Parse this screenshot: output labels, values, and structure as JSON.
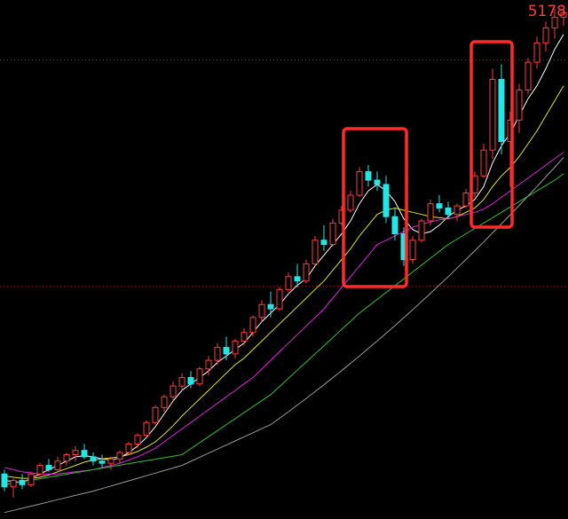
{
  "chart_data": {
    "type": "candlestick",
    "ylim": [
      2800,
      5220
    ],
    "up_color": "#ff3b3b",
    "down_color": "#22e5e5",
    "hlines": [
      4940,
      3885
    ],
    "max_label": {
      "value": 5178,
      "label": "5178"
    },
    "open": [
      3010,
      2950,
      2980,
      2960,
      3010,
      3050,
      3030,
      3070,
      3100,
      3120,
      3090,
      3070,
      3060,
      3080,
      3110,
      3150,
      3190,
      3250,
      3320,
      3370,
      3420,
      3460,
      3430,
      3500,
      3540,
      3600,
      3570,
      3630,
      3670,
      3740,
      3800,
      3780,
      3870,
      3930,
      3910,
      3990,
      4100,
      4080,
      4180,
      4240,
      4310,
      4420,
      4380,
      4360,
      4210,
      4130,
      4010,
      4100,
      4190,
      4270,
      4250,
      4220,
      4260,
      4320,
      4400,
      4520,
      4850,
      4560,
      4660,
      4800,
      4930,
      5020,
      5090,
      5140
    ],
    "high": [
      3030,
      2990,
      3010,
      3020,
      3060,
      3080,
      3090,
      3110,
      3140,
      3150,
      3110,
      3100,
      3090,
      3120,
      3160,
      3200,
      3260,
      3330,
      3380,
      3440,
      3480,
      3490,
      3510,
      3560,
      3620,
      3650,
      3640,
      3690,
      3750,
      3820,
      3860,
      3880,
      3950,
      3990,
      4010,
      4120,
      4170,
      4200,
      4260,
      4330,
      4440,
      4450,
      4420,
      4400,
      4250,
      4160,
      4120,
      4200,
      4290,
      4310,
      4280,
      4270,
      4340,
      4420,
      4550,
      4900,
      4920,
      4700,
      4830,
      4950,
      5050,
      5120,
      5178,
      5178
    ],
    "low": [
      2930,
      2900,
      2940,
      2950,
      2990,
      3020,
      3020,
      3050,
      3070,
      3080,
      3050,
      3040,
      3030,
      3060,
      3100,
      3130,
      3180,
      3240,
      3300,
      3350,
      3400,
      3410,
      3420,
      3470,
      3520,
      3540,
      3550,
      3610,
      3650,
      3720,
      3740,
      3770,
      3860,
      3880,
      3900,
      3980,
      4050,
      4070,
      4170,
      4230,
      4300,
      4350,
      4330,
      4180,
      4100,
      3980,
      3990,
      4090,
      4170,
      4230,
      4200,
      4190,
      4250,
      4300,
      4390,
      4480,
      4500,
      4350,
      4600,
      4780,
      4900,
      4980,
      5040,
      5100
    ],
    "close": [
      2950,
      2980,
      2960,
      3010,
      3050,
      3030,
      3070,
      3100,
      3120,
      3090,
      3070,
      3060,
      3080,
      3110,
      3150,
      3190,
      3250,
      3320,
      3370,
      3420,
      3460,
      3430,
      3500,
      3540,
      3600,
      3570,
      3630,
      3670,
      3740,
      3800,
      3780,
      3870,
      3930,
      3910,
      3990,
      4100,
      4080,
      4180,
      4240,
      4310,
      4420,
      4380,
      4360,
      4210,
      4130,
      4010,
      4100,
      4190,
      4270,
      4250,
      4220,
      4260,
      4320,
      4400,
      4520,
      4850,
      4560,
      4660,
      4800,
      4930,
      5020,
      5090,
      5140,
      5160
    ],
    "series": [
      {
        "color": "#ffffff",
        "values": [
          2980,
          2975,
          2970,
          2990,
          3010,
          3030,
          3050,
          3070,
          3090,
          3095,
          3090,
          3080,
          3075,
          3085,
          3110,
          3140,
          3180,
          3230,
          3290,
          3350,
          3400,
          3430,
          3460,
          3490,
          3530,
          3560,
          3590,
          3620,
          3670,
          3720,
          3760,
          3800,
          3850,
          3890,
          3920,
          3980,
          4030,
          4080,
          4130,
          4190,
          4270,
          4330,
          4360,
          4330,
          4280,
          4200,
          4150,
          4130,
          4140,
          4170,
          4210,
          4240,
          4260,
          4290,
          4350,
          4460,
          4540,
          4600,
          4680,
          4760,
          4820,
          4900,
          4990,
          5060
        ]
      },
      {
        "color": "#e6e619",
        "values": [
          3000,
          2995,
          2990,
          2990,
          2995,
          3005,
          3020,
          3035,
          3050,
          3065,
          3075,
          3080,
          3085,
          3090,
          3100,
          3115,
          3135,
          3160,
          3195,
          3235,
          3280,
          3320,
          3360,
          3400,
          3440,
          3480,
          3520,
          3550,
          3590,
          3630,
          3670,
          3710,
          3750,
          3790,
          3830,
          3870,
          3910,
          3960,
          4010,
          4060,
          4120,
          4170,
          4220,
          4240,
          4250,
          4240,
          4230,
          4220,
          4210,
          4205,
          4200,
          4210,
          4230,
          4250,
          4290,
          4350,
          4400,
          4440,
          4490,
          4550,
          4610,
          4680,
          4750,
          4820
        ]
      },
      {
        "color": "#e020e0",
        "values": [
          3040,
          3030,
          3020,
          3015,
          3010,
          3010,
          3010,
          3015,
          3020,
          3025,
          3030,
          3040,
          3050,
          3060,
          3075,
          3090,
          3110,
          3130,
          3160,
          3190,
          3220,
          3250,
          3280,
          3310,
          3340,
          3370,
          3400,
          3430,
          3460,
          3500,
          3540,
          3580,
          3620,
          3660,
          3700,
          3740,
          3780,
          3830,
          3880,
          3930,
          3980,
          4030,
          4080,
          4100,
          4120,
          4140,
          4160,
          4175,
          4185,
          4195,
          4200,
          4210,
          4220,
          4230,
          4245,
          4270,
          4300,
          4330,
          4360,
          4390,
          4420,
          4450,
          4480,
          4510
        ]
      },
      {
        "color": "#2fbf2f",
        "values": [
          2960,
          2967,
          2974,
          2981,
          2988,
          2995,
          3002,
          3009,
          3016,
          3023,
          3030,
          3037,
          3044,
          3051,
          3058,
          3065,
          3072,
          3079,
          3086,
          3093,
          3100,
          3128,
          3156,
          3184,
          3212,
          3240,
          3268,
          3296,
          3324,
          3352,
          3380,
          3418,
          3456,
          3494,
          3532,
          3570,
          3608,
          3646,
          3684,
          3722,
          3760,
          3792,
          3824,
          3856,
          3888,
          3920,
          3952,
          3984,
          4016,
          4048,
          4080,
          4105,
          4130,
          4155,
          4180,
          4205,
          4230,
          4255,
          4280,
          4305,
          4330,
          4355,
          4380,
          4410
        ]
      },
      {
        "color": "#9a9a9a",
        "values": [
          2830,
          2840,
          2850,
          2860,
          2870,
          2880,
          2890,
          2900,
          2910,
          2920,
          2930,
          2942,
          2954,
          2966,
          2978,
          2990,
          3002,
          3014,
          3026,
          3038,
          3050,
          3069,
          3088,
          3107,
          3126,
          3145,
          3164,
          3183,
          3202,
          3221,
          3240,
          3270,
          3300,
          3331,
          3362,
          3394,
          3426,
          3459,
          3492,
          3526,
          3560,
          3595,
          3630,
          3666,
          3702,
          3739,
          3776,
          3814,
          3852,
          3891,
          3930,
          3970,
          4010,
          4051,
          4092,
          4134,
          4176,
          4219,
          4262,
          4306,
          4350,
          4395,
          4440,
          4486
        ]
      }
    ]
  }
}
